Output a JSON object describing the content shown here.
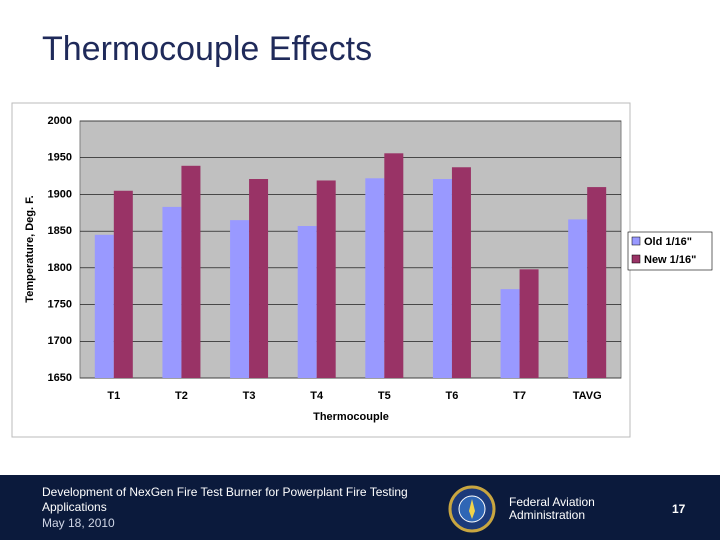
{
  "slide": {
    "title": "Thermocouple Effects",
    "footer_description": "Development of NexGen Fire Test Burner for Powerplant Fire Testing Applications",
    "footer_date": "May 18, 2010",
    "footer_agency": "Federal Aviation Administration",
    "page_number": "17"
  },
  "chart_data": {
    "type": "bar",
    "x_label": "Thermocouple",
    "y_label": "Temperature, Deg. F.",
    "categories": [
      "T1",
      "T2",
      "T3",
      "T4",
      "T5",
      "T6",
      "T7",
      "TAVG"
    ],
    "series": [
      {
        "name": "Old 1/16\"",
        "color": "#9999ff",
        "values": [
          1845,
          1883,
          1865,
          1857,
          1922,
          1921,
          1771,
          1866
        ]
      },
      {
        "name": "New 1/16\"",
        "color": "#993366",
        "values": [
          1905,
          1939,
          1921,
          1919,
          1956,
          1937,
          1798,
          1910
        ]
      }
    ],
    "ylim": [
      1650,
      2000
    ],
    "yticks": [
      1650,
      1700,
      1750,
      1800,
      1850,
      1900,
      1950,
      2000
    ],
    "grid": true,
    "legend": "right"
  }
}
